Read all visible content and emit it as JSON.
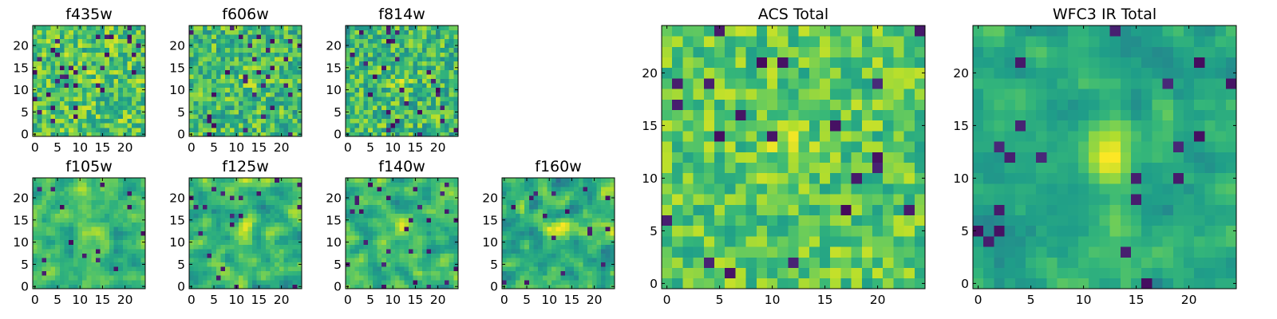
{
  "chart_data": {
    "type": "heatmap",
    "colormap": "viridis",
    "grid": false,
    "panels": [
      {
        "title": "f435w",
        "pixels": 25,
        "xlim": [
          -0.5,
          24.5
        ],
        "ylim": [
          -0.5,
          24.5
        ],
        "xticks": [
          0,
          5,
          10,
          15,
          20
        ],
        "yticks": [
          0,
          5,
          10,
          15,
          20
        ],
        "value_mean": 0.72,
        "noise": 0.22,
        "blob_strength": 0.05,
        "outlier_rate": 0.05,
        "smoothness": 0
      },
      {
        "title": "f606w",
        "pixels": 25,
        "xlim": [
          -0.5,
          24.5
        ],
        "ylim": [
          -0.5,
          24.5
        ],
        "xticks": [
          0,
          5,
          10,
          15,
          20
        ],
        "yticks": [
          0,
          5,
          10,
          15,
          20
        ],
        "value_mean": 0.68,
        "noise": 0.22,
        "blob_strength": 0.1,
        "outlier_rate": 0.05,
        "smoothness": 0
      },
      {
        "title": "f814w",
        "pixels": 25,
        "xlim": [
          -0.5,
          24.5
        ],
        "ylim": [
          -0.5,
          24.5
        ],
        "xticks": [
          0,
          5,
          10,
          15,
          20
        ],
        "yticks": [
          0,
          5,
          10,
          15,
          20
        ],
        "value_mean": 0.68,
        "noise": 0.22,
        "blob_strength": 0.15,
        "outlier_rate": 0.05,
        "smoothness": 0
      },
      {
        "title": "f105w",
        "pixels": 25,
        "xlim": [
          -0.5,
          24.5
        ],
        "ylim": [
          -0.5,
          24.5
        ],
        "xticks": [
          0,
          5,
          10,
          15,
          20
        ],
        "yticks": [
          0,
          5,
          10,
          15,
          20
        ],
        "value_mean": 0.66,
        "noise": 0.2,
        "blob_strength": 0.25,
        "outlier_rate": 0.03,
        "smoothness": 1
      },
      {
        "title": "f125w",
        "pixels": 25,
        "xlim": [
          -0.5,
          24.5
        ],
        "ylim": [
          -0.5,
          24.5
        ],
        "xticks": [
          0,
          5,
          10,
          15,
          20
        ],
        "yticks": [
          0,
          5,
          10,
          15,
          20
        ],
        "value_mean": 0.66,
        "noise": 0.22,
        "blob_strength": 0.25,
        "outlier_rate": 0.04,
        "smoothness": 1
      },
      {
        "title": "f140w",
        "pixels": 25,
        "xlim": [
          -0.5,
          24.5
        ],
        "ylim": [
          -0.5,
          24.5
        ],
        "xticks": [
          0,
          5,
          10,
          15,
          20
        ],
        "yticks": [
          0,
          5,
          10,
          15,
          20
        ],
        "value_mean": 0.66,
        "noise": 0.2,
        "blob_strength": 0.3,
        "outlier_rate": 0.03,
        "smoothness": 1
      },
      {
        "title": "f160w",
        "pixels": 25,
        "xlim": [
          -0.5,
          24.5
        ],
        "ylim": [
          -0.5,
          24.5
        ],
        "xticks": [
          0,
          5,
          10,
          15,
          20
        ],
        "yticks": [
          0,
          5,
          10,
          15,
          20
        ],
        "value_mean": 0.64,
        "noise": 0.22,
        "blob_strength": 0.35,
        "outlier_rate": 0.03,
        "smoothness": 1
      },
      {
        "title": "ACS Total",
        "pixels": 25,
        "xlim": [
          -0.5,
          24.5
        ],
        "ylim": [
          -0.5,
          24.5
        ],
        "xticks": [
          0,
          5,
          10,
          15,
          20
        ],
        "yticks": [
          0,
          5,
          10,
          15,
          20
        ],
        "value_mean": 0.74,
        "noise": 0.18,
        "blob_strength": 0.15,
        "outlier_rate": 0.04,
        "smoothness": 0
      },
      {
        "title": "WFC3 IR Total",
        "pixels": 25,
        "xlim": [
          -0.5,
          24.5
        ],
        "ylim": [
          -0.5,
          24.5
        ],
        "xticks": [
          0,
          5,
          10,
          15,
          20
        ],
        "yticks": [
          0,
          5,
          10,
          15,
          20
        ],
        "value_mean": 0.6,
        "noise": 0.16,
        "blob_strength": 0.4,
        "outlier_rate": 0.025,
        "smoothness": 1
      }
    ]
  }
}
